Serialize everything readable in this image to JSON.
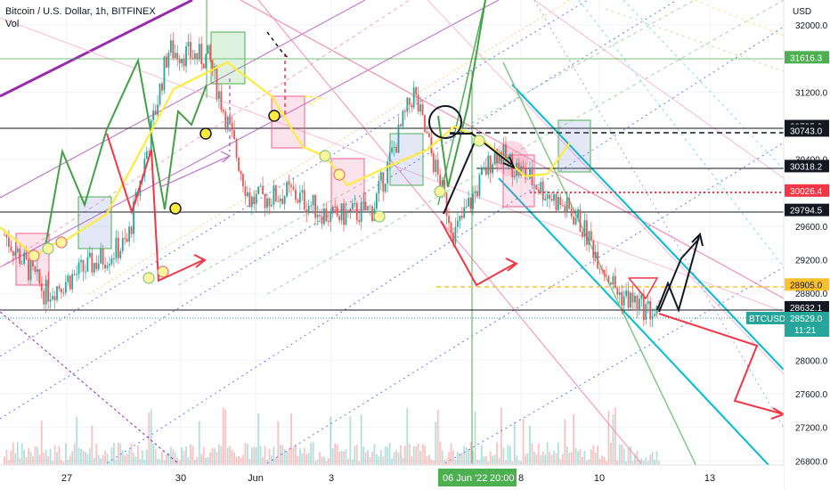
{
  "header": {
    "title": "Bitcoin / U.S. Dollar, 1h, BITFINEX",
    "volume_label": "Vol"
  },
  "axis": {
    "currency": "USD",
    "price_ticks": [
      "32000.0",
      "31200.0",
      "30400.0",
      "29600.0",
      "29200.0",
      "28800.0",
      "28000.0",
      "27600.0",
      "27200.0",
      "26800.0"
    ],
    "time_ticks": [
      "27",
      "30",
      "Jun",
      "3",
      "8",
      "10",
      "13"
    ],
    "crosshair_time": "06 Jun '22",
    "crosshair_clock": "20:00"
  },
  "levels": [
    {
      "label": "31616.3",
      "color": "#4caf50"
    },
    {
      "label": "30795.0",
      "color": "#131722"
    },
    {
      "label": "30743.0",
      "color": "#131722"
    },
    {
      "label": "30318.2",
      "color": "#131722"
    },
    {
      "label": "30026.4",
      "color": "#f23645"
    },
    {
      "label": "29794.5",
      "color": "#131722"
    },
    {
      "label": "28905.0",
      "color": "#fbc02d"
    },
    {
      "label": "28632.1",
      "color": "#131722"
    }
  ],
  "last_price": {
    "symbol": "BTCUSD",
    "price": "28529.0",
    "countdown": "11:21",
    "color": "#26a69a"
  },
  "chart_data": {
    "type": "candlestick",
    "title": "Bitcoin / U.S. Dollar, 1h, BITFINEX",
    "y_unit": "USD",
    "ylim": [
      26750,
      32300
    ],
    "x_ticks": [
      "27",
      "30",
      "Jun",
      "3",
      "8",
      "10",
      "13"
    ],
    "horizontal_levels": [
      31616.3,
      30795.0,
      30743.0,
      30318.2,
      30026.4,
      29794.5,
      28905.0,
      28632.1
    ],
    "last_price": 28529.0,
    "approx_close_path": [
      {
        "t": "27",
        "price": 29500
      },
      {
        "t": "28",
        "price": 28800
      },
      {
        "t": "29",
        "price": 29100
      },
      {
        "t": "30",
        "price": 29400
      },
      {
        "t": "31",
        "price": 31700
      },
      {
        "t": "Jun",
        "price": 31600
      },
      {
        "t": "2",
        "price": 29900
      },
      {
        "t": "3",
        "price": 30000
      },
      {
        "t": "4",
        "price": 29700
      },
      {
        "t": "5",
        "price": 29800
      },
      {
        "t": "6",
        "price": 31200
      },
      {
        "t": "7",
        "price": 29500
      },
      {
        "t": "8",
        "price": 30500
      },
      {
        "t": "9",
        "price": 30100
      },
      {
        "t": "10",
        "price": 29700
      },
      {
        "t": "11",
        "price": 28800
      },
      {
        "t": "12",
        "price": 28529
      }
    ],
    "grid": true,
    "legend": "none"
  },
  "colors": {
    "up": "#26a69a",
    "down": "#ef5350",
    "axis_text": "#131722",
    "grid": "#f0f3fa"
  }
}
